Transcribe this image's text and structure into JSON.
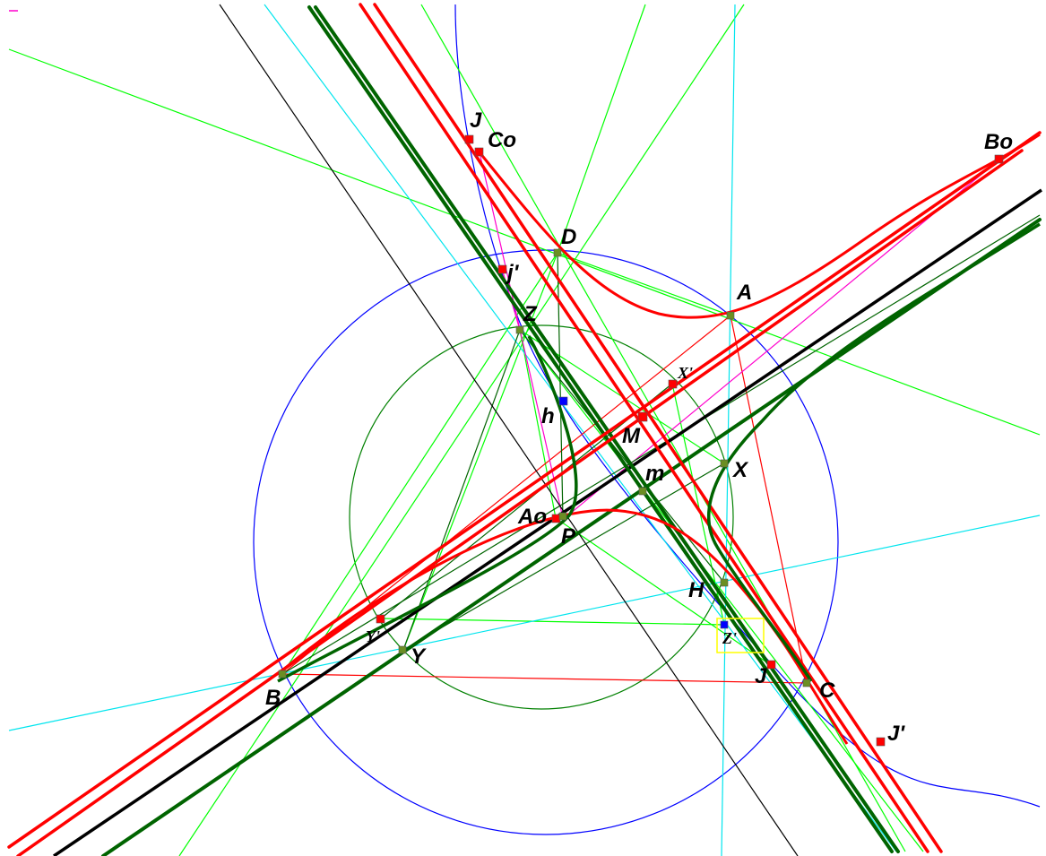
{
  "colors": {
    "red": "#ff0000",
    "dark_green": "#006400",
    "green": "#00ff00",
    "mid_green": "#008000",
    "blue": "#0000ff",
    "cyan": "#00e5ee",
    "magenta": "#ff00cc",
    "black": "#000000",
    "yellow": "#ffff00",
    "point_red": "#ff0000",
    "point_olive": "#6b8e23"
  },
  "points": [
    {
      "id": "J_top",
      "label": "J"
    },
    {
      "id": "Co",
      "label": "Co"
    },
    {
      "id": "Bo",
      "label": "Bo"
    },
    {
      "id": "D",
      "label": "D"
    },
    {
      "id": "j_prime",
      "label": "j'"
    },
    {
      "id": "A",
      "label": "A"
    },
    {
      "id": "Z",
      "label": "Z"
    },
    {
      "id": "X_prime",
      "label": "X'"
    },
    {
      "id": "h",
      "label": "h"
    },
    {
      "id": "M",
      "label": "M"
    },
    {
      "id": "X",
      "label": "X"
    },
    {
      "id": "m",
      "label": "m"
    },
    {
      "id": "Ao",
      "label": "Ao"
    },
    {
      "id": "P",
      "label": "P"
    },
    {
      "id": "H",
      "label": "H"
    },
    {
      "id": "Y_prime",
      "label": "Y'"
    },
    {
      "id": "Z_prime",
      "label": "Z'"
    },
    {
      "id": "Y",
      "label": "Y"
    },
    {
      "id": "J_low",
      "label": "J"
    },
    {
      "id": "B",
      "label": "B"
    },
    {
      "id": "C",
      "label": "C"
    },
    {
      "id": "J_prime",
      "label": "J'"
    }
  ]
}
